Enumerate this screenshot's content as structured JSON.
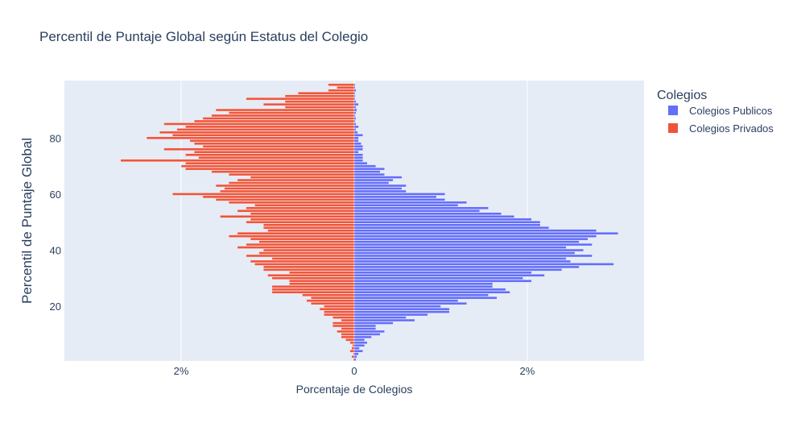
{
  "chart_data": {
    "type": "bar",
    "orientation": "horizontal",
    "barmode": "overlay",
    "title": "Percentil de Puntaje Global según Estatus del Colegio",
    "xlabel": "Porcentaje de Colegios",
    "ylabel": "Percentil de Puntaje Global",
    "xlim": [
      -3.35,
      3.35
    ],
    "ylim": [
      0.5,
      100.5
    ],
    "x_ticks": [
      -2,
      0,
      2
    ],
    "x_tick_labels": [
      "2%",
      "0",
      "2%"
    ],
    "y_ticks": [
      20,
      40,
      60,
      80
    ],
    "y_tick_labels": [
      "20",
      "40",
      "60",
      "80"
    ],
    "grid": true,
    "legend": {
      "title": "Colegios",
      "position": "right"
    },
    "colors": {
      "plot_bg": "#E5ECF6",
      "grid": "#ffffff",
      "publicos": "#636EFA",
      "privados": "#EF553B"
    },
    "y": [
      1,
      2,
      3,
      4,
      5,
      6,
      7,
      8,
      9,
      10,
      11,
      12,
      13,
      14,
      15,
      16,
      17,
      18,
      19,
      20,
      21,
      22,
      23,
      24,
      25,
      26,
      27,
      28,
      29,
      30,
      31,
      32,
      33,
      34,
      35,
      36,
      37,
      38,
      39,
      40,
      41,
      42,
      43,
      44,
      45,
      46,
      47,
      48,
      49,
      50,
      51,
      52,
      53,
      54,
      55,
      56,
      57,
      58,
      59,
      60,
      61,
      62,
      63,
      64,
      65,
      66,
      67,
      68,
      69,
      70,
      71,
      72,
      73,
      74,
      75,
      76,
      77,
      78,
      79,
      80,
      81,
      82,
      83,
      84,
      85,
      86,
      87,
      88,
      89,
      90,
      91,
      92,
      93,
      94,
      95,
      96,
      97,
      98,
      99
    ],
    "series": [
      {
        "name": "Colegios Publicos",
        "values": [
          0.02,
          0.03,
          0.05,
          0.1,
          0.06,
          0.12,
          0.15,
          0.12,
          0.2,
          0.3,
          0.35,
          0.25,
          0.25,
          0.45,
          0.7,
          0.6,
          0.85,
          1.1,
          1.1,
          1.0,
          1.3,
          1.2,
          1.65,
          1.55,
          1.8,
          1.75,
          1.6,
          1.6,
          2.05,
          1.95,
          2.2,
          2.05,
          2.4,
          2.6,
          3.0,
          2.5,
          2.45,
          2.75,
          2.55,
          2.65,
          2.45,
          2.75,
          2.6,
          2.7,
          2.8,
          3.05,
          2.8,
          2.25,
          2.15,
          2.15,
          2.05,
          1.85,
          1.7,
          1.45,
          1.55,
          1.2,
          1.3,
          1.05,
          0.95,
          1.05,
          0.6,
          0.55,
          0.6,
          0.4,
          0.45,
          0.55,
          0.35,
          0.3,
          0.35,
          0.25,
          0.15,
          0.1,
          0.1,
          0.1,
          0.05,
          0.1,
          0.1,
          0.08,
          0.05,
          0.05,
          0.1,
          0.04,
          0.02,
          0.05,
          0.02,
          0.01,
          0.02,
          0.01,
          0.02,
          0.03,
          0.02,
          0.05,
          0.02,
          0.01,
          0.01,
          0.01,
          0.02,
          0.01,
          0.01
        ]
      },
      {
        "name": "Colegios Privados",
        "values": [
          -0.01,
          -0.03,
          -0.01,
          -0.05,
          -0.03,
          -0.02,
          -0.05,
          -0.1,
          -0.15,
          -0.15,
          -0.2,
          -0.15,
          -0.25,
          -0.25,
          -0.15,
          -0.25,
          -0.35,
          -0.35,
          -0.4,
          -0.35,
          -0.5,
          -0.55,
          -0.5,
          -0.6,
          -0.95,
          -0.95,
          -0.95,
          -0.75,
          -0.75,
          -0.95,
          -1.0,
          -0.75,
          -1.05,
          -1.05,
          -1.15,
          -1.2,
          -0.95,
          -1.25,
          -1.1,
          -1.05,
          -1.35,
          -1.25,
          -1.1,
          -1.2,
          -1.45,
          -1.35,
          -1.0,
          -1.05,
          -1.05,
          -1.25,
          -1.2,
          -1.55,
          -1.2,
          -1.35,
          -1.25,
          -1.15,
          -1.45,
          -1.6,
          -1.75,
          -2.1,
          -1.55,
          -1.5,
          -1.6,
          -1.45,
          -1.35,
          -1.2,
          -1.45,
          -1.65,
          -1.95,
          -2.0,
          -1.95,
          -2.7,
          -1.8,
          -1.95,
          -1.85,
          -2.2,
          -1.75,
          -1.85,
          -1.9,
          -2.4,
          -2.1,
          -2.25,
          -2.05,
          -1.95,
          -2.2,
          -1.85,
          -1.75,
          -1.65,
          -1.45,
          -1.6,
          -0.8,
          -1.05,
          -0.8,
          -1.25,
          -0.8,
          -0.65,
          -0.3,
          -0.2,
          -0.3
        ]
      }
    ]
  }
}
